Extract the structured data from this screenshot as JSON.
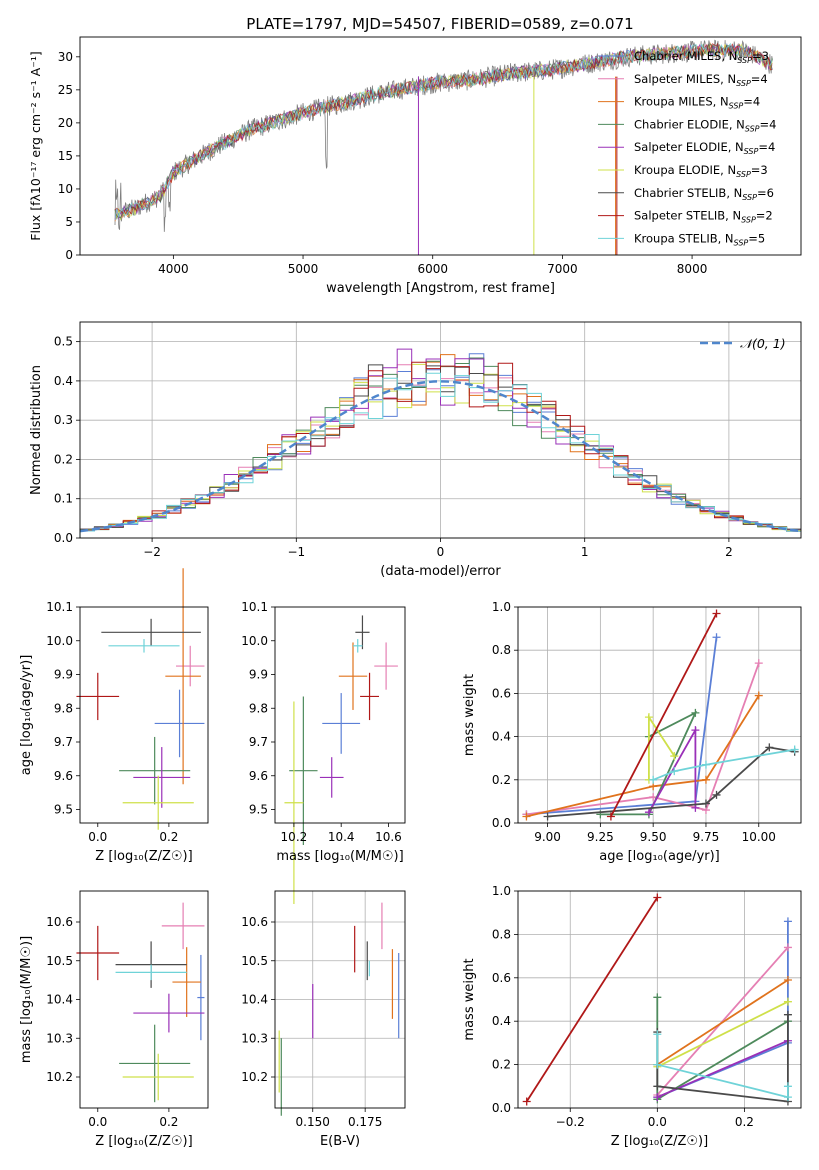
{
  "figure": {
    "title": "PLATE=1797, MJD=54507, FIBERID=0589, z=0.071"
  },
  "colors": {
    "Chabrier MILES": "#5b7fd6",
    "Salpeter MILES": "#e57fb3",
    "Kroupa MILES": "#e0731d",
    "Chabrier ELODIE": "#4e8a5c",
    "Salpeter ELODIE": "#9a30b8",
    "Kroupa ELODIE": "#cfe04a",
    "Chabrier STELIB": "#4a4a4a",
    "Salpeter STELIB": "#b01818",
    "Kroupa STELIB": "#6fd3d8",
    "normal": "#4f86cc"
  },
  "chart_data": [
    {
      "type": "line",
      "panel": "spectrum",
      "xlabel": "wavelength [Angstrom, rest frame]",
      "ylabel": "Flux [fλ10⁻¹⁷ erg cm⁻² s⁻¹ A⁻¹]",
      "xlim": [
        3280,
        8840
      ],
      "ylim": [
        0,
        33
      ],
      "xticks": [
        4000,
        5000,
        6000,
        7000,
        8000
      ],
      "yticks": [
        0,
        5,
        10,
        15,
        20,
        25,
        30
      ],
      "grid": false,
      "legend_position": "right",
      "series": [
        {
          "name": "Chabrier MILES, N",
          "sub": "SSP",
          "n": "=3"
        },
        {
          "name": "Salpeter MILES, N",
          "sub": "SSP",
          "n": "=4"
        },
        {
          "name": "Kroupa MILES, N",
          "sub": "SSP",
          "n": "=4"
        },
        {
          "name": "Chabrier ELODIE, N",
          "sub": "SSP",
          "n": "=4"
        },
        {
          "name": "Salpeter ELODIE, N",
          "sub": "SSP",
          "n": "=4"
        },
        {
          "name": "Kroupa ELODIE, N",
          "sub": "SSP",
          "n": "=3"
        },
        {
          "name": "Chabrier STELIB, N",
          "sub": "SSP",
          "n": "=6"
        },
        {
          "name": "Salpeter STELIB, N",
          "sub": "SSP",
          "n": "=2"
        },
        {
          "name": "Kroupa STELIB, N",
          "sub": "SSP",
          "n": "=5"
        }
      ],
      "continuum": {
        "x": [
          3550,
          3700,
          3900,
          4000,
          4300,
          4600,
          5000,
          5300,
          5600,
          6000,
          6300,
          6600,
          6900,
          7200,
          7500,
          7800,
          8100,
          8400,
          8600
        ],
        "y": [
          6,
          7,
          9,
          12.5,
          16,
          19,
          21.5,
          23,
          24.5,
          26,
          26.5,
          27.5,
          28,
          29,
          30,
          30.5,
          31,
          31,
          29
        ]
      }
    },
    {
      "type": "histogram",
      "panel": "residuals",
      "xlabel": "(data-model)/error",
      "ylabel": "Normed distribution",
      "xlim": [
        -2.5,
        2.5
      ],
      "ylim": [
        0,
        0.55
      ],
      "xticks": [
        -2,
        -1,
        0,
        1,
        2
      ],
      "yticks": [
        0.0,
        0.1,
        0.2,
        0.3,
        0.4,
        0.5
      ],
      "grid": true,
      "legend": {
        "label": "𝒩(0, 1)",
        "position": "top-right"
      }
    },
    {
      "type": "scatter",
      "panel": "age-vs-Z",
      "xlabel": "Z [log₁₀(Z/Z☉)]",
      "ylabel": "age  [log₁₀(age/yr)]",
      "xlim": [
        -0.05,
        0.31
      ],
      "ylim": [
        9.46,
        10.1
      ],
      "xticks": [
        0.0,
        0.2
      ],
      "yticks": [
        9.5,
        9.6,
        9.7,
        9.8,
        9.9,
        10.0,
        10.1
      ],
      "grid": false,
      "points": [
        {
          "series": "Chabrier MILES",
          "x": 0.23,
          "y": 9.755,
          "xerr": 0.07,
          "yerr": 0.1
        },
        {
          "series": "Salpeter MILES",
          "x": 0.26,
          "y": 9.925,
          "xerr": 0.04,
          "yerr": 0.06
        },
        {
          "series": "Kroupa MILES",
          "x": 0.24,
          "y": 9.895,
          "xerr": 0.05,
          "yerr": 0.32
        },
        {
          "series": "Chabrier ELODIE",
          "x": 0.16,
          "y": 9.615,
          "xerr": 0.1,
          "yerr": 0.1
        },
        {
          "series": "Salpeter ELODIE",
          "x": 0.18,
          "y": 9.595,
          "xerr": 0.08,
          "yerr": 0.09
        },
        {
          "series": "Kroupa ELODIE",
          "x": 0.17,
          "y": 9.52,
          "xerr": 0.1,
          "yerr": 0.08
        },
        {
          "series": "Chabrier STELIB",
          "x": 0.15,
          "y": 10.025,
          "xerr": 0.14,
          "yerr": 0.04
        },
        {
          "series": "Salpeter STELIB",
          "x": 0.0,
          "y": 9.835,
          "xerr": 0.06,
          "yerr": 0.07
        },
        {
          "series": "Kroupa STELIB",
          "x": 0.13,
          "y": 9.985,
          "xerr": 0.1,
          "yerr": 0.02
        }
      ]
    },
    {
      "type": "scatter",
      "panel": "age-vs-mass",
      "xlabel": "mass [log₁₀(M/M☉)]",
      "ylabel": "",
      "xlim": [
        10.12,
        10.67
      ],
      "ylim": [
        9.46,
        10.1
      ],
      "xticks": [
        10.2,
        10.4,
        10.6
      ],
      "yticks": [
        9.5,
        9.6,
        9.7,
        9.8,
        9.9,
        10.0,
        10.1
      ],
      "grid": false,
      "points": [
        {
          "series": "Chabrier MILES",
          "x": 10.4,
          "y": 9.755,
          "xerr": 0.08,
          "yerr": 0.09
        },
        {
          "series": "Salpeter MILES",
          "x": 10.59,
          "y": 9.925,
          "xerr": 0.05,
          "yerr": 0.07
        },
        {
          "series": "Kroupa MILES",
          "x": 10.45,
          "y": 9.895,
          "xerr": 0.06,
          "yerr": 0.1
        },
        {
          "series": "Chabrier ELODIE",
          "x": 10.24,
          "y": 9.615,
          "xerr": 0.06,
          "yerr": 0.22
        },
        {
          "series": "Salpeter ELODIE",
          "x": 10.36,
          "y": 9.595,
          "xerr": 0.05,
          "yerr": 0.06
        },
        {
          "series": "Kroupa ELODIE",
          "x": 10.2,
          "y": 9.52,
          "xerr": 0.04,
          "yerr": 0.3
        },
        {
          "series": "Chabrier STELIB",
          "x": 10.49,
          "y": 10.025,
          "xerr": 0.03,
          "yerr": 0.05
        },
        {
          "series": "Salpeter STELIB",
          "x": 10.52,
          "y": 9.835,
          "xerr": 0.04,
          "yerr": 0.07
        },
        {
          "series": "Kroupa STELIB",
          "x": 10.47,
          "y": 9.985,
          "xerr": 0.02,
          "yerr": 0.02
        }
      ]
    },
    {
      "type": "line",
      "panel": "weight-vs-age",
      "xlabel": "age  [log₁₀(age/yr)]",
      "ylabel": "mass weight",
      "xlim": [
        8.86,
        10.2
      ],
      "ylim": [
        0,
        1.0
      ],
      "xticks": [
        9.0,
        9.25,
        9.5,
        9.75,
        10.0
      ],
      "yticks": [
        0.0,
        0.2,
        0.4,
        0.6,
        0.8,
        1.0
      ],
      "grid": true,
      "series": [
        {
          "name": "Chabrier MILES",
          "x": [
            8.9,
            9.7,
            9.8
          ],
          "y": [
            0.04,
            0.1,
            0.86
          ]
        },
        {
          "name": "Salpeter MILES",
          "x": [
            8.9,
            9.5,
            9.75,
            10.0
          ],
          "y": [
            0.04,
            0.12,
            0.06,
            0.74
          ]
        },
        {
          "name": "Kroupa MILES",
          "x": [
            8.9,
            9.5,
            9.75,
            10.0
          ],
          "y": [
            0.03,
            0.17,
            0.2,
            0.59
          ]
        },
        {
          "name": "Chabrier ELODIE",
          "x": [
            9.25,
            9.48,
            9.7,
            9.48
          ],
          "y": [
            0.04,
            0.04,
            0.51,
            0.4
          ]
        },
        {
          "name": "Salpeter ELODIE",
          "x": [
            9.48,
            9.7,
            9.7
          ],
          "y": [
            0.05,
            0.43,
            0.07
          ]
        },
        {
          "name": "Kroupa ELODIE",
          "x": [
            9.48,
            9.48,
            9.6
          ],
          "y": [
            0.2,
            0.49,
            0.31
          ]
        },
        {
          "name": "Chabrier STELIB",
          "x": [
            9.0,
            9.75,
            9.8,
            10.05,
            10.17
          ],
          "y": [
            0.03,
            0.09,
            0.13,
            0.35,
            0.33
          ]
        },
        {
          "name": "Salpeter STELIB",
          "x": [
            9.3,
            9.8
          ],
          "y": [
            0.03,
            0.97
          ]
        },
        {
          "name": "Kroupa STELIB",
          "x": [
            9.5,
            9.6,
            9.75,
            10.17
          ],
          "y": [
            0.2,
            0.24,
            0.27,
            0.34
          ]
        }
      ]
    },
    {
      "type": "scatter",
      "panel": "mass-vs-Z",
      "xlabel": "Z [log₁₀(Z/Z☉)]",
      "ylabel": "mass [log₁₀(M/M☉)]",
      "xlim": [
        -0.05,
        0.31
      ],
      "ylim": [
        10.12,
        10.68
      ],
      "xticks": [
        0.0,
        0.2
      ],
      "yticks": [
        10.2,
        10.3,
        10.4,
        10.5,
        10.6
      ],
      "grid": false,
      "points": [
        {
          "series": "Chabrier MILES",
          "x": 0.29,
          "y": 10.405,
          "xerr": 0.01,
          "yerr": 0.11
        },
        {
          "series": "Salpeter MILES",
          "x": 0.24,
          "y": 10.59,
          "xerr": 0.06,
          "yerr": 0.06
        },
        {
          "series": "Kroupa MILES",
          "x": 0.25,
          "y": 10.445,
          "xerr": 0.04,
          "yerr": 0.09
        },
        {
          "series": "Chabrier ELODIE",
          "x": 0.16,
          "y": 10.235,
          "xerr": 0.1,
          "yerr": 0.1
        },
        {
          "series": "Salpeter ELODIE",
          "x": 0.2,
          "y": 10.365,
          "xerr": 0.1,
          "yerr": 0.05
        },
        {
          "series": "Kroupa ELODIE",
          "x": 0.17,
          "y": 10.2,
          "xerr": 0.1,
          "yerr": 0.06
        },
        {
          "series": "Chabrier STELIB",
          "x": 0.15,
          "y": 10.49,
          "xerr": 0.1,
          "yerr": 0.06
        },
        {
          "series": "Salpeter STELIB",
          "x": 0.0,
          "y": 10.52,
          "xerr": 0.06,
          "yerr": 0.07
        },
        {
          "series": "Kroupa STELIB",
          "x": 0.15,
          "y": 10.47,
          "xerr": 0.1,
          "yerr": 0.02
        }
      ]
    },
    {
      "type": "scatter",
      "panel": "mass-vs-EBV",
      "xlabel": "E(B-V)",
      "ylabel": "",
      "xlim": [
        0.132,
        0.194
      ],
      "ylim": [
        10.12,
        10.68
      ],
      "xticks": [
        0.15,
        0.175
      ],
      "yticks": [
        10.2,
        10.3,
        10.4,
        10.5,
        10.6
      ],
      "grid": true,
      "points": [
        {
          "series": "Chabrier MILES",
          "x": 0.191,
          "y": 10.41,
          "xerr": 0,
          "yerr": 0.11
        },
        {
          "series": "Salpeter MILES",
          "x": 0.183,
          "y": 10.59,
          "xerr": 0,
          "yerr": 0.06
        },
        {
          "series": "Kroupa MILES",
          "x": 0.188,
          "y": 10.44,
          "xerr": 0,
          "yerr": 0.09
        },
        {
          "series": "Chabrier ELODIE",
          "x": 0.135,
          "y": 10.2,
          "xerr": 0,
          "yerr": 0.1
        },
        {
          "series": "Salpeter ELODIE",
          "x": 0.15,
          "y": 10.37,
          "xerr": 0,
          "yerr": 0.07
        },
        {
          "series": "Kroupa ELODIE",
          "x": 0.134,
          "y": 10.24,
          "xerr": 0,
          "yerr": 0.08
        },
        {
          "series": "Chabrier STELIB",
          "x": 0.176,
          "y": 10.5,
          "xerr": 0,
          "yerr": 0.05
        },
        {
          "series": "Salpeter STELIB",
          "x": 0.17,
          "y": 10.53,
          "xerr": 0,
          "yerr": 0.06
        },
        {
          "series": "Kroupa STELIB",
          "x": 0.177,
          "y": 10.48,
          "xerr": 0,
          "yerr": 0.02
        }
      ]
    },
    {
      "type": "line",
      "panel": "weight-vs-Z",
      "xlabel": "Z [log₁₀(Z/Z☉)]",
      "ylabel": "mass weight",
      "xlim": [
        -0.32,
        0.33
      ],
      "ylim": [
        0,
        1.0
      ],
      "xticks": [
        -0.2,
        0.0,
        0.2
      ],
      "yticks": [
        0.0,
        0.2,
        0.4,
        0.6,
        0.8,
        1.0
      ],
      "grid": true,
      "series": [
        {
          "name": "Chabrier MILES",
          "x": [
            0.0,
            0.3,
            0.3
          ],
          "y": [
            0.05,
            0.3,
            0.86
          ]
        },
        {
          "name": "Salpeter MILES",
          "x": [
            0.0,
            0.3
          ],
          "y": [
            0.06,
            0.74
          ]
        },
        {
          "name": "Kroupa MILES",
          "x": [
            0.0,
            0.3
          ],
          "y": [
            0.2,
            0.59
          ]
        },
        {
          "name": "Chabrier ELODIE",
          "x": [
            0.0,
            0.0,
            0.3
          ],
          "y": [
            0.51,
            0.04,
            0.4
          ]
        },
        {
          "name": "Salpeter ELODIE",
          "x": [
            0.0,
            0.3
          ],
          "y": [
            0.05,
            0.31
          ]
        },
        {
          "name": "Kroupa ELODIE",
          "x": [
            0.0,
            0.3
          ],
          "y": [
            0.19,
            0.49
          ]
        },
        {
          "name": "Chabrier STELIB",
          "x": [
            0.0,
            0.0,
            0.3,
            0.3
          ],
          "y": [
            0.35,
            0.1,
            0.03,
            0.43
          ]
        },
        {
          "name": "Salpeter STELIB",
          "x": [
            -0.3,
            0.0
          ],
          "y": [
            0.03,
            0.97
          ]
        },
        {
          "name": "Kroupa STELIB",
          "x": [
            0.0,
            0.0,
            0.3,
            0.3
          ],
          "y": [
            0.34,
            0.2,
            0.05,
            0.1
          ]
        }
      ]
    }
  ]
}
